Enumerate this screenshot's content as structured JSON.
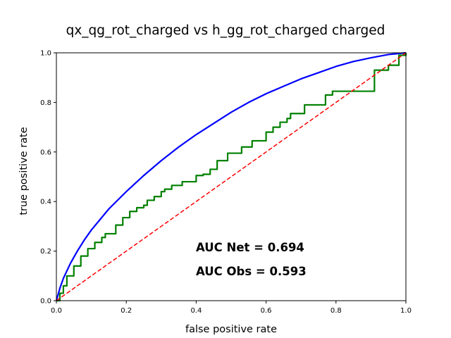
{
  "chart_data": {
    "type": "line",
    "title": "qx_qg_rot_charged vs h_gg_rot_charged charged",
    "xlabel": "false positive rate",
    "ylabel": "true positive rate",
    "xlim": [
      0,
      1
    ],
    "ylim": [
      0,
      1
    ],
    "xticks": [
      "0.0",
      "0.2",
      "0.4",
      "0.6",
      "0.8",
      "1.0"
    ],
    "yticks": [
      "0.0",
      "0.2",
      "0.4",
      "0.6",
      "0.8",
      "1.0"
    ],
    "grid": false,
    "annotations": {
      "auc_net": "AUC Net = 0.694",
      "auc_obs": "AUC Obs = 0.593"
    },
    "series": [
      {
        "color": "#0000ff",
        "style": "solid",
        "x": [
          0,
          0.01,
          0.02,
          0.04,
          0.06,
          0.08,
          0.1,
          0.15,
          0.2,
          0.25,
          0.3,
          0.35,
          0.4,
          0.45,
          0.5,
          0.55,
          0.6,
          0.65,
          0.7,
          0.75,
          0.8,
          0.85,
          0.9,
          0.95,
          1.0
        ],
        "y": [
          0,
          0.05,
          0.09,
          0.15,
          0.2,
          0.245,
          0.285,
          0.37,
          0.44,
          0.505,
          0.565,
          0.62,
          0.67,
          0.715,
          0.76,
          0.8,
          0.835,
          0.865,
          0.895,
          0.92,
          0.945,
          0.965,
          0.98,
          0.993,
          1.0
        ]
      },
      {
        "color": "#008000",
        "style": "step",
        "x": [
          0,
          0.01,
          0.02,
          0.03,
          0.05,
          0.07,
          0.09,
          0.11,
          0.13,
          0.14,
          0.17,
          0.17,
          0.19,
          0.21,
          0.23,
          0.25,
          0.26,
          0.28,
          0.3,
          0.31,
          0.33,
          0.36,
          0.36,
          0.4,
          0.4,
          0.42,
          0.44,
          0.46,
          0.46,
          0.49,
          0.49,
          0.53,
          0.53,
          0.56,
          0.56,
          0.58,
          0.6,
          0.62,
          0.64,
          0.66,
          0.67,
          0.71,
          0.71,
          0.77,
          0.77,
          0.79,
          0.79,
          0.91,
          0.91,
          0.95,
          0.95,
          0.98,
          0.98,
          1.0
        ],
        "y": [
          0,
          0.03,
          0.06,
          0.1,
          0.14,
          0.18,
          0.21,
          0.235,
          0.255,
          0.27,
          0.27,
          0.305,
          0.335,
          0.36,
          0.375,
          0.385,
          0.405,
          0.42,
          0.44,
          0.45,
          0.465,
          0.475,
          0.48,
          0.48,
          0.505,
          0.51,
          0.53,
          0.55,
          0.565,
          0.575,
          0.595,
          0.595,
          0.62,
          0.62,
          0.645,
          0.645,
          0.68,
          0.7,
          0.72,
          0.735,
          0.755,
          0.765,
          0.79,
          0.79,
          0.83,
          0.84,
          0.845,
          0.845,
          0.93,
          0.94,
          0.95,
          0.96,
          0.99,
          1.0
        ]
      },
      {
        "color": "#ff0000",
        "style": "dashed",
        "x": [
          0,
          1
        ],
        "y": [
          0,
          1
        ]
      }
    ]
  }
}
